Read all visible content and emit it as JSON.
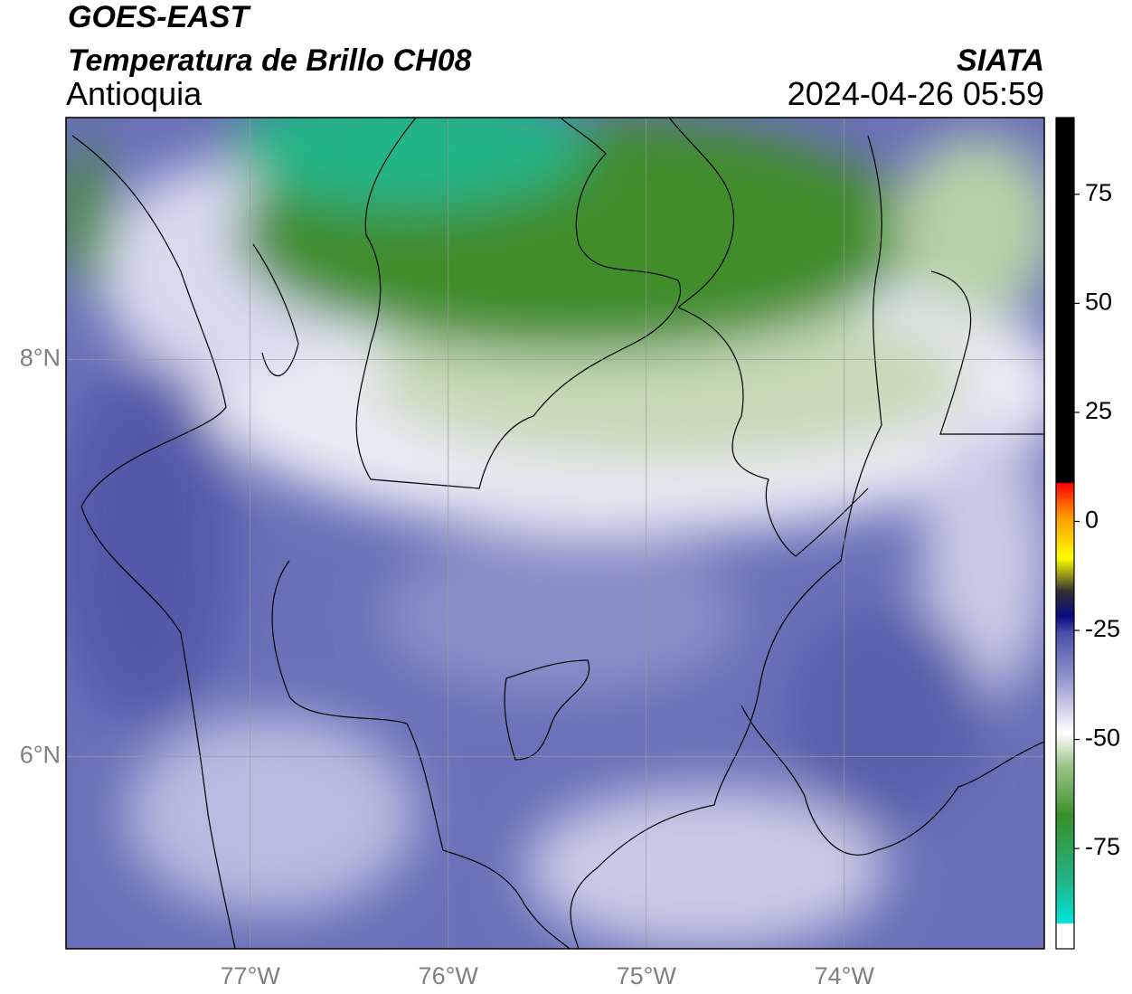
{
  "header": {
    "title": "GOES-EAST",
    "subtitle": "Temperatura de Brillo CH08",
    "region": "Antioquia",
    "source": "SIATA",
    "datetime": "2024-04-26 05:59"
  },
  "map": {
    "xlim": [
      -77.93,
      -72.99
    ],
    "ylim": [
      5.03,
      9.22
    ],
    "xticks": [
      {
        "value": -77,
        "label": "77°W"
      },
      {
        "value": -76,
        "label": "76°W"
      },
      {
        "value": -75,
        "label": "75°W"
      },
      {
        "value": -74,
        "label": "74°W"
      }
    ],
    "yticks": [
      {
        "value": 8,
        "label": "8°N"
      },
      {
        "value": 6,
        "label": "6°N"
      }
    ],
    "grid": true
  },
  "colorbar": {
    "lim": [
      -98,
      92.6
    ],
    "ticks": [
      75,
      50,
      25,
      0,
      -25,
      -50,
      -75
    ]
  }
}
